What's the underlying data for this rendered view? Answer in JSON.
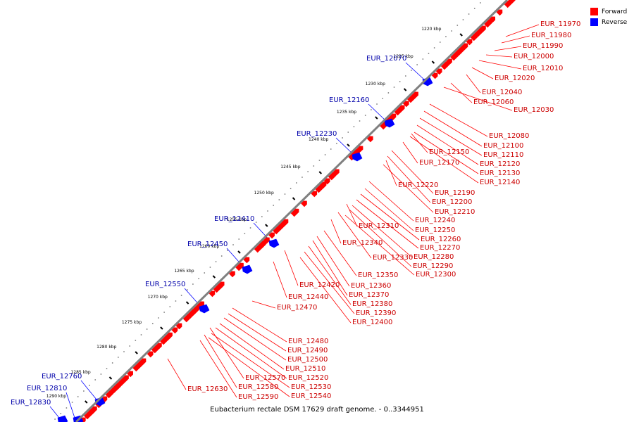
{
  "legend": {
    "forward": "Forward",
    "reverse": "Reverse"
  },
  "colors": {
    "forward": "#ff0000",
    "reverse": "#0000ff",
    "axis": "#808080",
    "forward_label": "#cc0000",
    "reverse_label": "#0000aa"
  },
  "caption": "Eubacterium rectale DSM 17629 draft genome. - 0..3344951",
  "axis_ticks": [
    "1220 kbp",
    "1225 kbp",
    "1230 kbp",
    "1235 kbp",
    "1240 kbp",
    "1245 kbp",
    "1250 kbp",
    "1255 kbp",
    "1260 kbp",
    "1265 kbp",
    "1270 kbp",
    "1275 kbp",
    "1280 kbp",
    "1285 kbp",
    "1290 kbp"
  ],
  "forward_genes": [
    "EUR_11970",
    "EUR_11980",
    "EUR_11990",
    "EUR_12000",
    "EUR_12010",
    "EUR_12020",
    "EUR_12040",
    "EUR_12060",
    "EUR_12030",
    "EUR_12080",
    "EUR_12100",
    "EUR_12110",
    "EUR_12150",
    "EUR_12120",
    "EUR_12170",
    "EUR_12130",
    "EUR_12140",
    "EUR_12220",
    "EUR_12190",
    "EUR_12200",
    "EUR_12210",
    "EUR_12240",
    "EUR_12310",
    "EUR_12250",
    "EUR_12260",
    "EUR_12340",
    "EUR_12270",
    "EUR_12330",
    "EUR_12280",
    "EUR_12290",
    "EUR_12300",
    "EUR_12350",
    "EUR_12360",
    "EUR_12420",
    "EUR_12370",
    "EUR_12440",
    "EUR_12380",
    "EUR_12470",
    "EUR_12390",
    "EUR_12400",
    "EUR_12480",
    "EUR_12490",
    "EUR_12500",
    "EUR_12510",
    "EUR_12570",
    "EUR_12520",
    "EUR_12580",
    "EUR_12530",
    "EUR_12630",
    "EUR_12590",
    "EUR_12540"
  ],
  "reverse_genes": [
    "EUR_12070",
    "EUR_12160",
    "EUR_12230",
    "EUR_12410",
    "EUR_12450",
    "EUR_12550",
    "EUR_12760",
    "EUR_12810",
    "EUR_12830"
  ]
}
